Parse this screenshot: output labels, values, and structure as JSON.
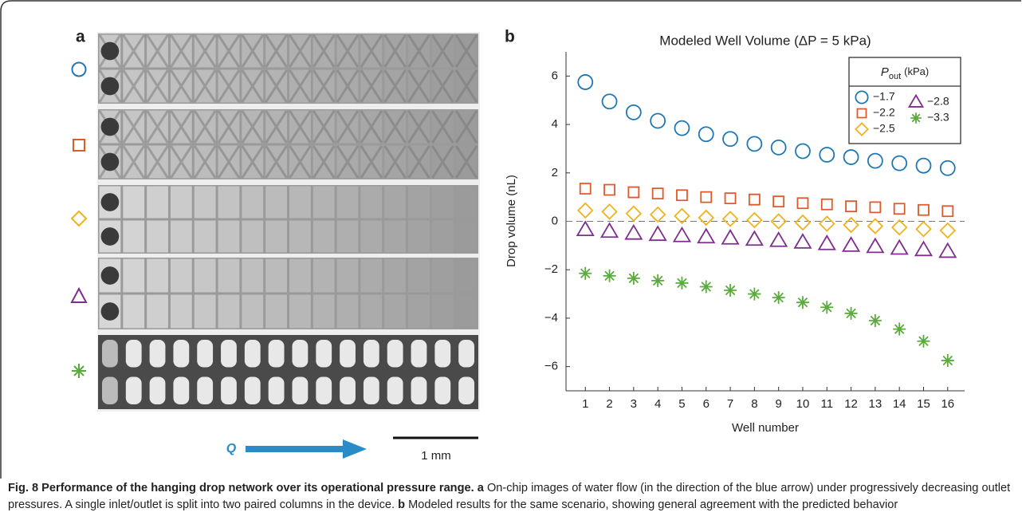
{
  "panel_a": {
    "label": "a",
    "flow_label": "Q",
    "scale_bar": "1 mm"
  },
  "chart_data": {
    "type": "scatter",
    "panel_label": "b",
    "title": "Modeled Well Volume (ΔP = 5 kPa)",
    "x_label": "Well number",
    "y_label": "Drop volume (nL)",
    "x": [
      1,
      2,
      3,
      4,
      5,
      6,
      7,
      8,
      9,
      10,
      11,
      12,
      13,
      14,
      15,
      16
    ],
    "xlim": [
      0.2,
      16.7
    ],
    "xticks": [
      1,
      2,
      3,
      4,
      5,
      6,
      7,
      8,
      9,
      10,
      11,
      12,
      13,
      14,
      15,
      16
    ],
    "ylim": [
      -7,
      7
    ],
    "yticks": [
      {
        "value": -6,
        "label": "−6"
      },
      {
        "value": -4,
        "label": "−4"
      },
      {
        "value": -2,
        "label": "−2"
      },
      0,
      2,
      4,
      6
    ],
    "reference_line": 0,
    "legend_title": {
      "symbol": "P",
      "subscript": "out",
      "unit": "(kPa)"
    },
    "legend_position": "upper right",
    "series": [
      {
        "name": "−1.7",
        "color": "#1f77b4",
        "marker": "circle",
        "values": [
          5.75,
          4.95,
          4.5,
          4.15,
          3.85,
          3.6,
          3.4,
          3.2,
          3.05,
          2.9,
          2.75,
          2.65,
          2.5,
          2.4,
          2.3,
          2.2
        ]
      },
      {
        "name": "−2.2",
        "color": "#e0592a",
        "marker": "square",
        "values": [
          1.35,
          1.3,
          1.2,
          1.15,
          1.08,
          1.0,
          0.95,
          0.9,
          0.82,
          0.75,
          0.7,
          0.62,
          0.58,
          0.52,
          0.47,
          0.42
        ]
      },
      {
        "name": "−2.5",
        "color": "#f0b21e",
        "marker": "diamond",
        "values": [
          0.45,
          0.4,
          0.32,
          0.28,
          0.22,
          0.15,
          0.1,
          0.05,
          0,
          -0.05,
          -0.1,
          -0.15,
          -0.2,
          -0.25,
          -0.32,
          -0.38
        ]
      },
      {
        "name": "−2.8",
        "color": "#7e2f8e",
        "marker": "triangle",
        "values": [
          -0.35,
          -0.42,
          -0.5,
          -0.55,
          -0.6,
          -0.65,
          -0.7,
          -0.75,
          -0.8,
          -0.87,
          -0.93,
          -1.0,
          -1.05,
          -1.12,
          -1.18,
          -1.25
        ]
      },
      {
        "name": "−3.3",
        "color": "#5aab3c",
        "marker": "asterisk",
        "values": [
          -2.15,
          -2.25,
          -2.35,
          -2.45,
          -2.55,
          -2.7,
          -2.85,
          -3.0,
          -3.15,
          -3.35,
          -3.55,
          -3.8,
          -4.1,
          -4.45,
          -4.95,
          -5.75
        ]
      }
    ]
  },
  "caption": {
    "label": "Fig. 8",
    "title": "Performance of the hanging drop network over its operational pressure range.",
    "parts": [
      {
        "label": "a",
        "text": "On-chip images of water flow (in the direction of the blue arrow) under progressively decreasing outlet pressures. A single inlet/outlet is split into two paired columns in the device."
      },
      {
        "label": "b",
        "text": "Modeled results for the same scenario, showing general agreement with the predicted behavior"
      }
    ]
  }
}
